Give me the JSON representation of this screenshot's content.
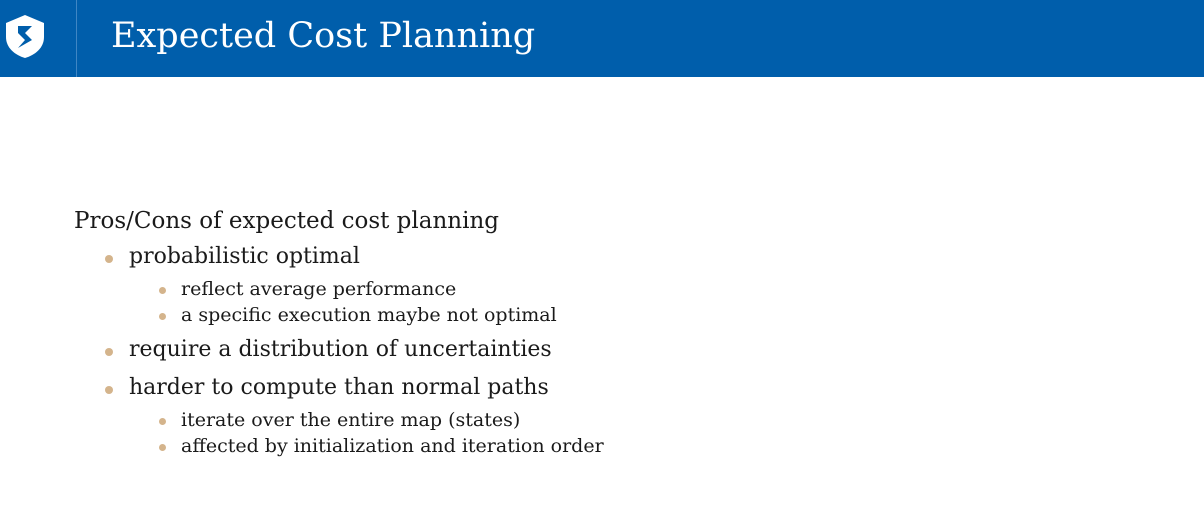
{
  "header": {
    "title": "Expected Cost Planning",
    "logo_icon": "shield-s-logo-icon",
    "background_color": "#005eab"
  },
  "content": {
    "intro": "Pros/Cons of expected cost planning",
    "bullets": [
      {
        "text": "probabilistic optimal",
        "sub": [
          "reflect average performance",
          "a specific execution maybe not optimal"
        ]
      },
      {
        "text": "require a distribution of uncertainties",
        "sub": []
      },
      {
        "text": "harder to compute than normal paths",
        "sub": [
          "iterate over the entire map (states)",
          "affected by initialization and iteration order"
        ]
      }
    ],
    "bullet_color": "#d4b48c"
  }
}
